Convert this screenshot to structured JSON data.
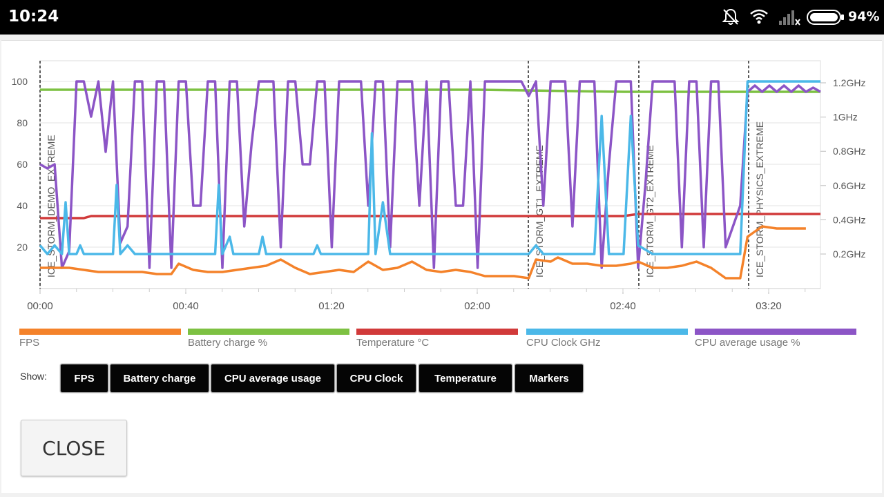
{
  "status_bar": {
    "time": "10:24",
    "battery_percent": "94%",
    "icons": [
      "bell-off-icon",
      "wifi-icon",
      "cell-signal-off-icon",
      "battery-icon"
    ]
  },
  "chart_data": {
    "type": "line",
    "x_ticks": [
      "00:00",
      "00:40",
      "01:20",
      "02:00",
      "02:40",
      "03:20"
    ],
    "x_range": [
      0,
      214
    ],
    "left_ticks": [
      "100",
      "80",
      "60",
      "40",
      "20"
    ],
    "left_range": [
      0,
      100
    ],
    "right_ticks": [
      "1.2GHz",
      "1GHz",
      "0.8GHz",
      "0.6GHz",
      "0.4GHz",
      "0.2GHz"
    ],
    "right_range": [
      0,
      1.2
    ],
    "grid": true,
    "legend_placement": "bottom",
    "markers": [
      {
        "label": "ICE_STORM_DEMO_EXTREME",
        "x": 0
      },
      {
        "label": "ICE_STORM_GT1_EXTREME",
        "x": 134
      },
      {
        "label": "ICE_STORM_GT2_EXTREME",
        "x": 164
      },
      {
        "label": "ICE_STORM_PHYSICS_EXTREME",
        "x": 194
      }
    ],
    "series": [
      {
        "name": "FPS",
        "axis": "left",
        "color": "#F4822A",
        "points": [
          [
            0,
            10
          ],
          [
            4,
            10
          ],
          [
            8,
            10
          ],
          [
            12,
            9
          ],
          [
            16,
            8
          ],
          [
            20,
            8
          ],
          [
            24,
            8
          ],
          [
            28,
            8
          ],
          [
            32,
            7
          ],
          [
            36,
            7
          ],
          [
            38,
            12
          ],
          [
            42,
            9
          ],
          [
            46,
            8
          ],
          [
            50,
            8
          ],
          [
            54,
            9
          ],
          [
            58,
            10
          ],
          [
            62,
            11
          ],
          [
            66,
            14
          ],
          [
            70,
            10
          ],
          [
            74,
            7
          ],
          [
            78,
            8
          ],
          [
            82,
            9
          ],
          [
            86,
            8
          ],
          [
            90,
            13
          ],
          [
            94,
            9
          ],
          [
            98,
            10
          ],
          [
            102,
            13
          ],
          [
            106,
            9
          ],
          [
            110,
            8
          ],
          [
            114,
            9
          ],
          [
            118,
            8
          ],
          [
            122,
            6
          ],
          [
            126,
            6
          ],
          [
            130,
            6
          ],
          [
            134,
            5
          ],
          [
            136,
            14
          ],
          [
            140,
            13
          ],
          [
            142,
            15
          ],
          [
            146,
            12
          ],
          [
            150,
            12
          ],
          [
            154,
            11
          ],
          [
            158,
            11
          ],
          [
            162,
            12
          ],
          [
            164,
            13
          ],
          [
            168,
            10
          ],
          [
            172,
            10
          ],
          [
            176,
            11
          ],
          [
            180,
            13
          ],
          [
            184,
            10
          ],
          [
            188,
            5
          ],
          [
            192,
            5
          ],
          [
            194,
            25
          ],
          [
            198,
            30
          ],
          [
            202,
            29
          ],
          [
            206,
            29
          ],
          [
            210,
            29
          ]
        ]
      },
      {
        "name": "Battery charge %",
        "axis": "left",
        "color": "#7DC142",
        "points": [
          [
            0,
            96
          ],
          [
            40,
            96
          ],
          [
            80,
            96
          ],
          [
            120,
            96
          ],
          [
            160,
            95
          ],
          [
            200,
            95
          ],
          [
            214,
            95
          ]
        ]
      },
      {
        "name": "Temperature °C",
        "axis": "left",
        "color": "#D13A3A",
        "points": [
          [
            0,
            34
          ],
          [
            12,
            34
          ],
          [
            14,
            35
          ],
          [
            40,
            35
          ],
          [
            80,
            35
          ],
          [
            120,
            35
          ],
          [
            160,
            35
          ],
          [
            164,
            36
          ],
          [
            200,
            36
          ],
          [
            214,
            36
          ]
        ]
      },
      {
        "name": "CPU Clock GHz",
        "axis": "right",
        "color": "#4BB8E8",
        "points": [
          [
            0,
            0.25
          ],
          [
            2,
            0.2
          ],
          [
            4,
            0.25
          ],
          [
            6,
            0.2
          ],
          [
            7,
            0.5
          ],
          [
            8,
            0.2
          ],
          [
            10,
            0.2
          ],
          [
            11,
            0.25
          ],
          [
            12,
            0.2
          ],
          [
            20,
            0.2
          ],
          [
            21,
            0.6
          ],
          [
            22,
            0.2
          ],
          [
            24,
            0.25
          ],
          [
            26,
            0.2
          ],
          [
            48,
            0.2
          ],
          [
            49,
            0.6
          ],
          [
            50,
            0.2
          ],
          [
            52,
            0.3
          ],
          [
            53,
            0.2
          ],
          [
            60,
            0.2
          ],
          [
            61,
            0.3
          ],
          [
            62,
            0.2
          ],
          [
            75,
            0.2
          ],
          [
            76,
            0.25
          ],
          [
            77,
            0.2
          ],
          [
            90,
            0.2
          ],
          [
            91,
            0.9
          ],
          [
            92,
            0.2
          ],
          [
            94,
            0.5
          ],
          [
            96,
            0.2
          ],
          [
            134,
            0.2
          ],
          [
            136,
            0.25
          ],
          [
            138,
            0.2
          ],
          [
            152,
            0.2
          ],
          [
            154,
            1.0
          ],
          [
            156,
            0.2
          ],
          [
            160,
            0.2
          ],
          [
            162,
            1.0
          ],
          [
            164,
            0.25
          ],
          [
            168,
            0.2
          ],
          [
            172,
            0.2
          ],
          [
            176,
            0.2
          ],
          [
            190,
            0.2
          ],
          [
            192,
            0.2
          ],
          [
            194,
            1.2
          ],
          [
            214,
            1.2
          ]
        ]
      },
      {
        "name": "CPU average usage %",
        "axis": "left",
        "color": "#8C55C6",
        "points": [
          [
            0,
            60
          ],
          [
            2,
            58
          ],
          [
            4,
            60
          ],
          [
            6,
            10
          ],
          [
            8,
            18
          ],
          [
            10,
            100
          ],
          [
            12,
            100
          ],
          [
            14,
            83
          ],
          [
            16,
            100
          ],
          [
            18,
            66
          ],
          [
            20,
            100
          ],
          [
            22,
            22
          ],
          [
            24,
            30
          ],
          [
            26,
            100
          ],
          [
            28,
            100
          ],
          [
            30,
            10
          ],
          [
            32,
            100
          ],
          [
            34,
            100
          ],
          [
            36,
            10
          ],
          [
            38,
            100
          ],
          [
            40,
            100
          ],
          [
            42,
            40
          ],
          [
            44,
            40
          ],
          [
            46,
            100
          ],
          [
            48,
            100
          ],
          [
            50,
            10
          ],
          [
            52,
            100
          ],
          [
            54,
            100
          ],
          [
            56,
            30
          ],
          [
            58,
            70
          ],
          [
            60,
            100
          ],
          [
            62,
            100
          ],
          [
            64,
            100
          ],
          [
            66,
            20
          ],
          [
            68,
            100
          ],
          [
            70,
            100
          ],
          [
            72,
            60
          ],
          [
            74,
            60
          ],
          [
            76,
            100
          ],
          [
            78,
            100
          ],
          [
            80,
            20
          ],
          [
            82,
            100
          ],
          [
            84,
            100
          ],
          [
            86,
            100
          ],
          [
            88,
            100
          ],
          [
            90,
            40
          ],
          [
            92,
            100
          ],
          [
            94,
            100
          ],
          [
            96,
            20
          ],
          [
            98,
            100
          ],
          [
            100,
            100
          ],
          [
            102,
            100
          ],
          [
            104,
            40
          ],
          [
            106,
            100
          ],
          [
            108,
            10
          ],
          [
            110,
            100
          ],
          [
            112,
            100
          ],
          [
            114,
            40
          ],
          [
            116,
            40
          ],
          [
            118,
            100
          ],
          [
            120,
            10
          ],
          [
            122,
            100
          ],
          [
            124,
            100
          ],
          [
            126,
            100
          ],
          [
            128,
            100
          ],
          [
            130,
            100
          ],
          [
            132,
            100
          ],
          [
            134,
            93
          ],
          [
            136,
            100
          ],
          [
            138,
            40
          ],
          [
            140,
            100
          ],
          [
            142,
            100
          ],
          [
            144,
            100
          ],
          [
            146,
            30
          ],
          [
            148,
            100
          ],
          [
            150,
            100
          ],
          [
            152,
            100
          ],
          [
            154,
            10
          ],
          [
            156,
            60
          ],
          [
            158,
            100
          ],
          [
            160,
            100
          ],
          [
            162,
            100
          ],
          [
            164,
            10
          ],
          [
            166,
            50
          ],
          [
            168,
            100
          ],
          [
            170,
            100
          ],
          [
            172,
            100
          ],
          [
            174,
            100
          ],
          [
            176,
            20
          ],
          [
            178,
            100
          ],
          [
            180,
            100
          ],
          [
            182,
            20
          ],
          [
            184,
            100
          ],
          [
            186,
            100
          ],
          [
            188,
            20
          ],
          [
            190,
            30
          ],
          [
            192,
            40
          ],
          [
            194,
            95
          ],
          [
            196,
            98
          ],
          [
            198,
            95
          ],
          [
            200,
            98
          ],
          [
            202,
            95
          ],
          [
            204,
            98
          ],
          [
            206,
            95
          ],
          [
            208,
            98
          ],
          [
            210,
            95
          ],
          [
            212,
            97
          ],
          [
            214,
            95
          ]
        ]
      }
    ]
  },
  "legend": [
    {
      "label": "FPS",
      "color": "#F4822A"
    },
    {
      "label": "Battery charge %",
      "color": "#7DC142"
    },
    {
      "label": "Temperature °C",
      "color": "#D13A3A"
    },
    {
      "label": "CPU Clock GHz",
      "color": "#4BB8E8"
    },
    {
      "label": "CPU average usage %",
      "color": "#8C55C6"
    }
  ],
  "controls": {
    "show_label": "Show:",
    "toggles": [
      "FPS",
      "Battery charge",
      "CPU average usage",
      "CPU Clock",
      "Temperature",
      "Markers"
    ],
    "close_label": "CLOSE"
  }
}
